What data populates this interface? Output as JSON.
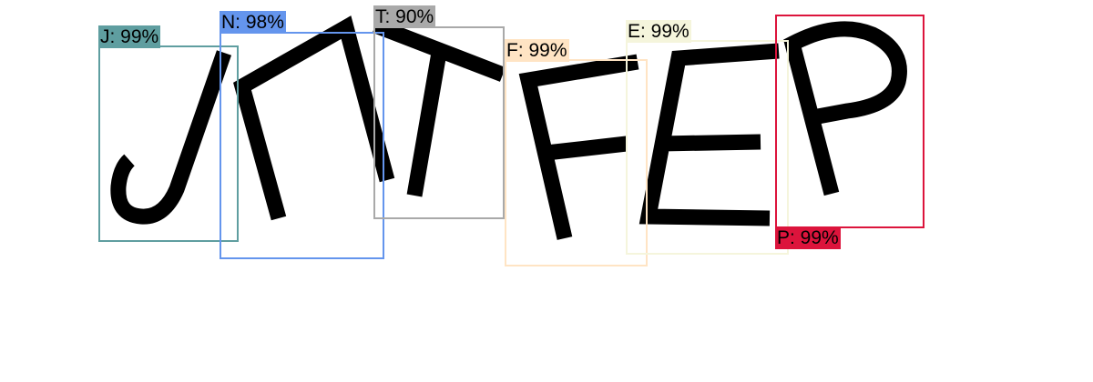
{
  "detections": [
    {
      "id": "j",
      "label": "J: 99%",
      "color": "#5f9ea0"
    },
    {
      "id": "n",
      "label": "N: 98%",
      "color": "#6495ed"
    },
    {
      "id": "t",
      "label": "T: 90%",
      "color": "#a9a9a9"
    },
    {
      "id": "f",
      "label": "F: 99%",
      "color": "#ffe4c4"
    },
    {
      "id": "e",
      "label": "E: 99%",
      "color": "#f5f5dc"
    },
    {
      "id": "p",
      "label": "P: 99%",
      "color": "#dc143c"
    }
  ]
}
